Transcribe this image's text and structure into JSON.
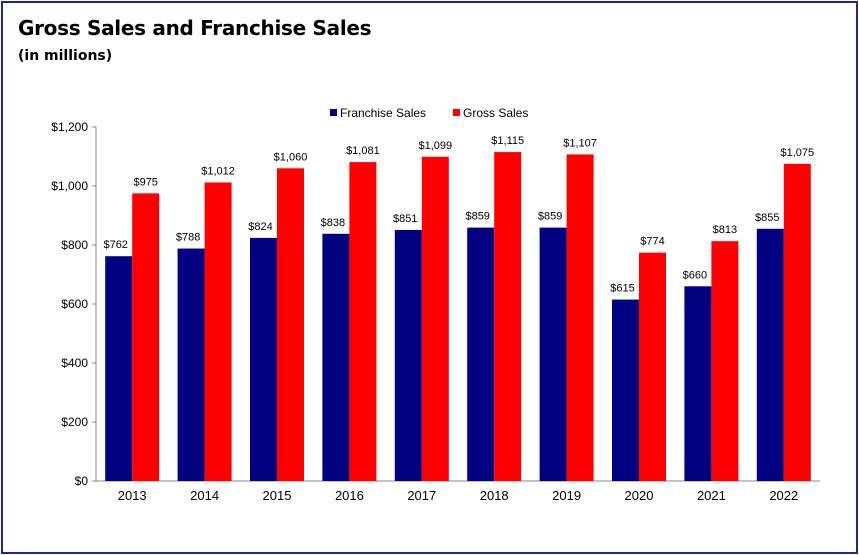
{
  "chart_data": {
    "type": "bar",
    "title": "Gross Sales and Franchise Sales",
    "subtitle": "(in millions)",
    "xlabel": "",
    "ylabel": "",
    "categories": [
      "2013",
      "2014",
      "2015",
      "2016",
      "2017",
      "2018",
      "2019",
      "2020",
      "2021",
      "2022"
    ],
    "series": [
      {
        "name": "Franchise Sales",
        "color": "#000080",
        "values": [
          762,
          788,
          824,
          838,
          851,
          859,
          859,
          615,
          660,
          855
        ],
        "labels": [
          "$762",
          "$788",
          "$824",
          "$838",
          "$851",
          "$859",
          "$859",
          "$615",
          "$660",
          "$855"
        ]
      },
      {
        "name": "Gross Sales",
        "color": "#ff0000",
        "values": [
          975,
          1012,
          1060,
          1081,
          1099,
          1115,
          1107,
          774,
          813,
          1075
        ],
        "labels": [
          "$975",
          "$1,012",
          "$1,060",
          "$1,081",
          "$1,099",
          "$1,115",
          "$1,107",
          "$774",
          "$813",
          "$1,075"
        ]
      }
    ],
    "ylim": [
      0,
      1200
    ],
    "yticks": [
      0,
      200,
      400,
      600,
      800,
      1000,
      1200
    ],
    "ytick_labels": [
      "$0",
      "$200",
      "$400",
      "$600",
      "$800",
      "$1,000",
      "$1,200"
    ],
    "grid": false,
    "legend": "top-center"
  }
}
